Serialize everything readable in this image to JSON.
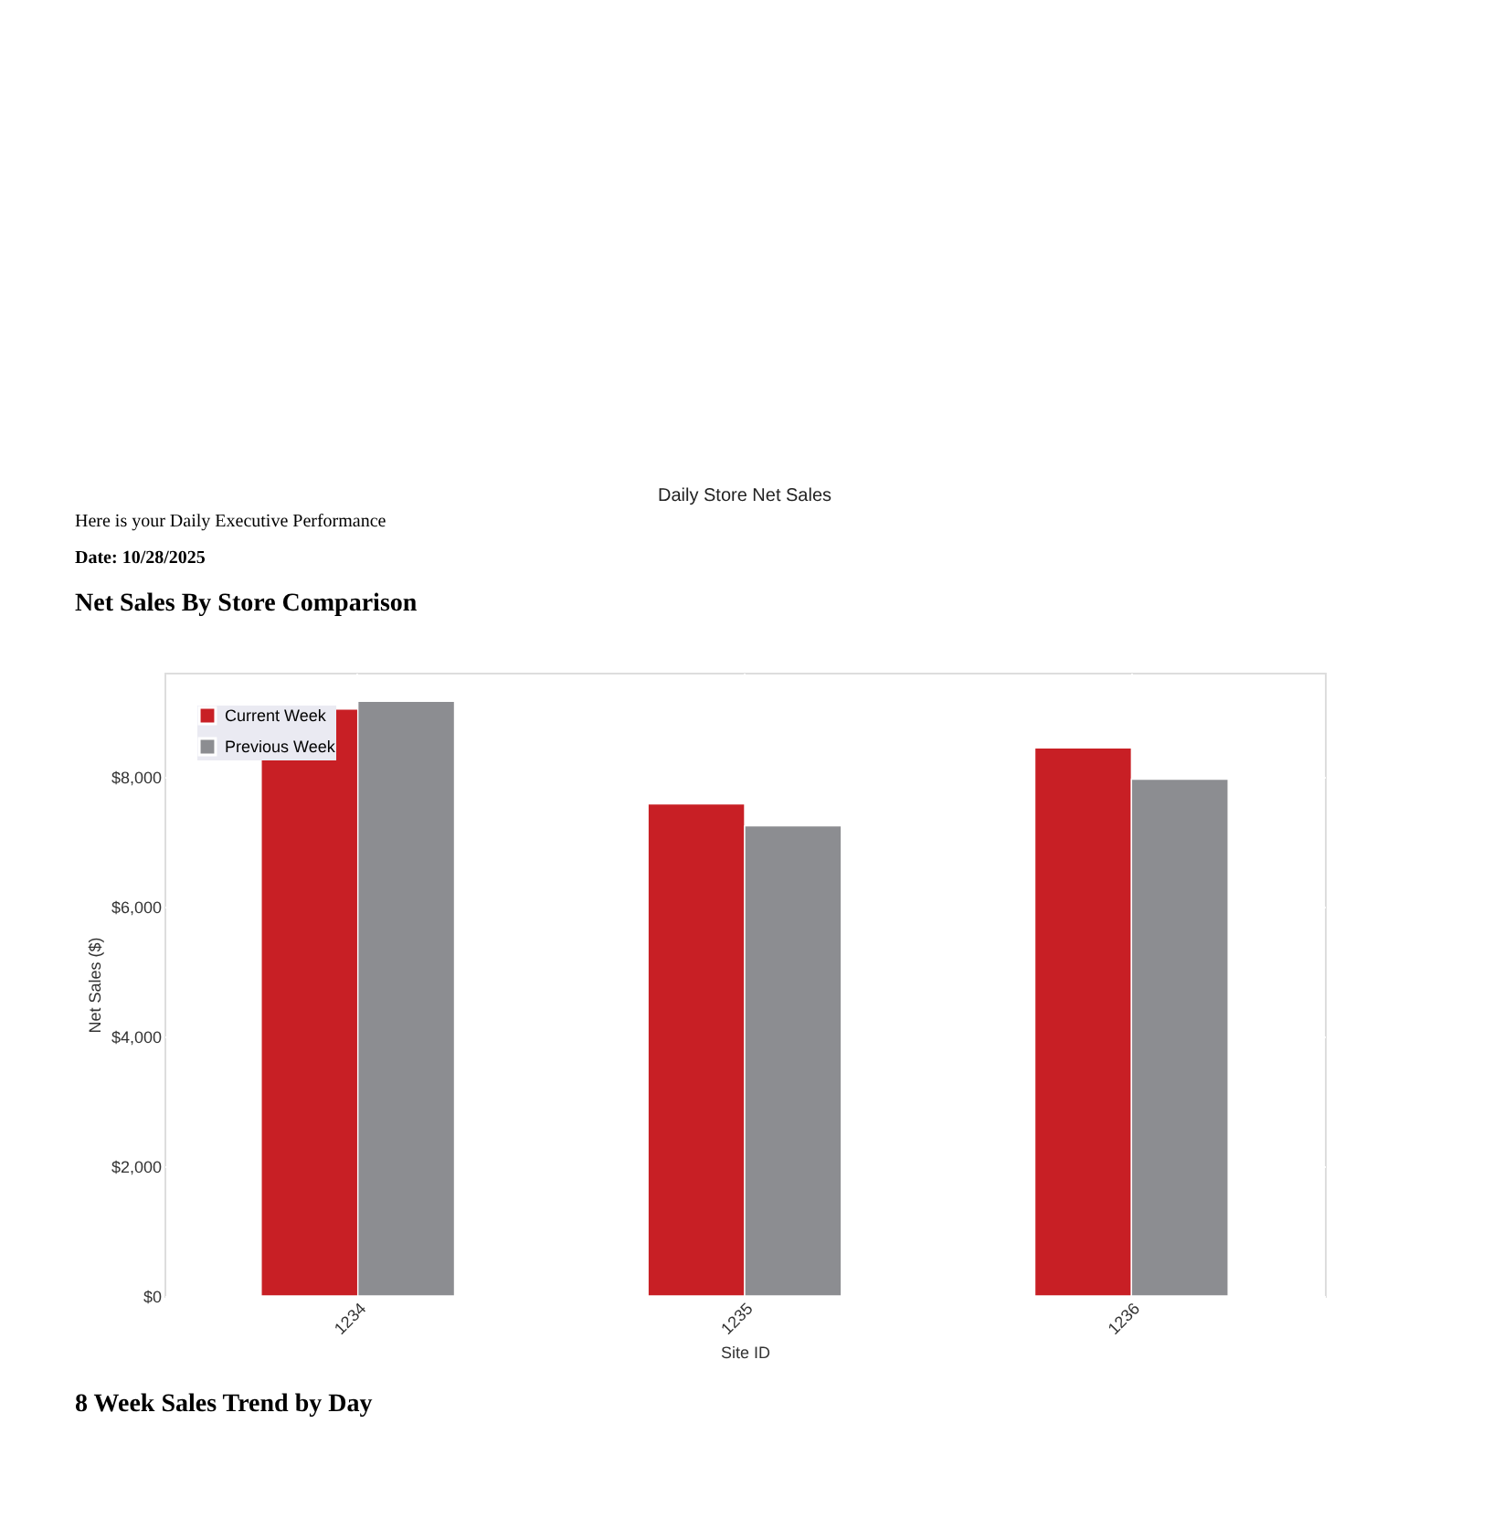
{
  "chart_data": {
    "type": "bar",
    "title": "Daily Store Net Sales",
    "xlabel": "Site ID",
    "ylabel": "Net Sales ($)",
    "annotations": [
      "Here is your Daily Executive Performance",
      "Date: 10/28/2025",
      "Net Sales By Store Comparison",
      "8 Week Sales Trend by Day"
    ],
    "categories": [
      "1234",
      "1235",
      "1236"
    ],
    "series": [
      {
        "name": "Current Week",
        "color": "#c81f25",
        "values": [
          9040,
          7580,
          8440
        ]
      },
      {
        "name": "Previous Week",
        "color": "#8c8d91",
        "values": [
          9160,
          7240,
          7960
        ]
      }
    ],
    "ylim": [
      0,
      9600
    ],
    "yticks": [
      {
        "value": 0,
        "label": "$0"
      },
      {
        "value": 2000,
        "label": "$2,000"
      },
      {
        "value": 4000,
        "label": "$4,000"
      },
      {
        "value": 6000,
        "label": "$6,000"
      },
      {
        "value": 8000,
        "label": "$8,000"
      }
    ],
    "grid": true,
    "legend": "top left"
  }
}
